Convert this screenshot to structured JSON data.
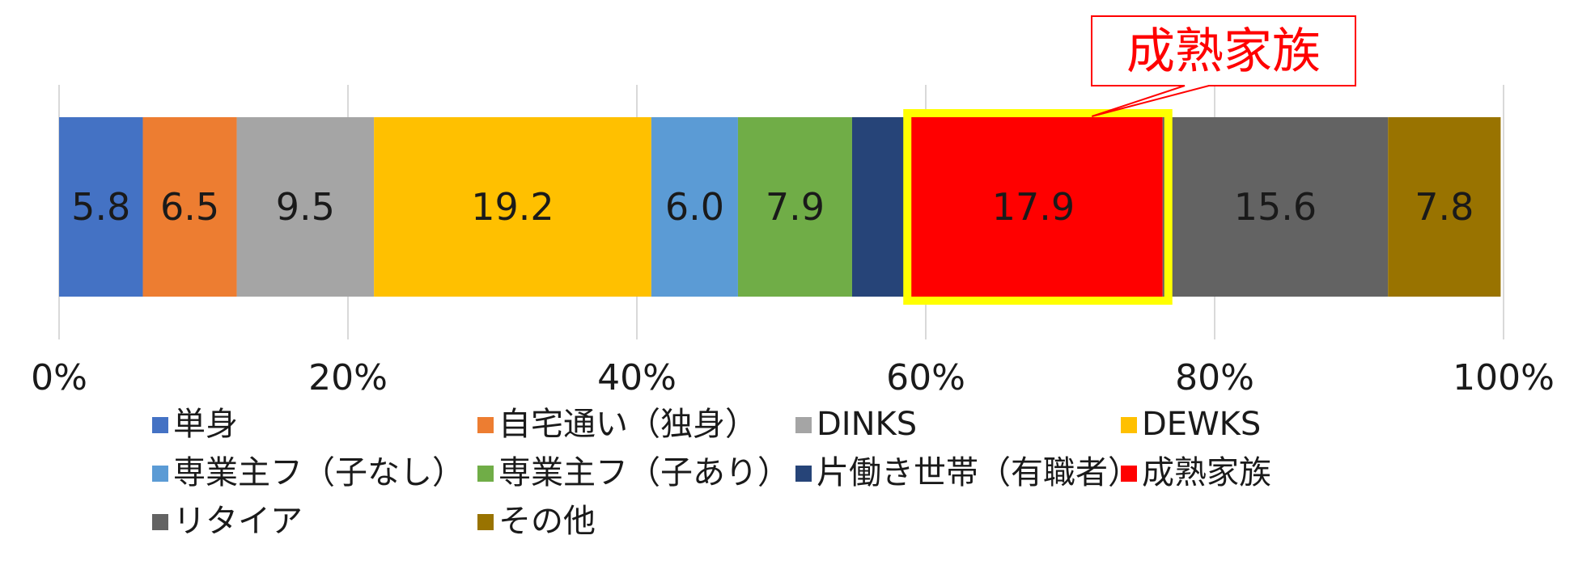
{
  "chart_data": {
    "type": "bar",
    "orientation": "horizontal",
    "stacked": true,
    "xlim": [
      0,
      100
    ],
    "x_ticks": [
      "0%",
      "20%",
      "40%",
      "60%",
      "80%",
      "100%"
    ],
    "grid": true,
    "legend_position": "bottom",
    "series": [
      {
        "name": "単身",
        "value": 5.8,
        "label": "5.8",
        "color": "#4472c4"
      },
      {
        "name": "自宅通い（独身）",
        "value": 6.5,
        "label": "6.5",
        "color": "#ed7d31"
      },
      {
        "name": "DINKS",
        "value": 9.5,
        "label": "9.5",
        "color": "#a5a5a5"
      },
      {
        "name": "DEWKS",
        "value": 19.2,
        "label": "19.2",
        "color": "#ffc000"
      },
      {
        "name": "専業主フ（子なし）",
        "value": 6.0,
        "label": "6.0",
        "color": "#5b9bd5"
      },
      {
        "name": "専業主フ（子あり）",
        "value": 7.9,
        "label": "7.9",
        "color": "#70ad47"
      },
      {
        "name": "片働き世帯（有職者）",
        "value": 3.6,
        "label": "",
        "color": "#264478"
      },
      {
        "name": "成熟家族",
        "value": 17.9,
        "label": "17.9",
        "color": "#ff0000"
      },
      {
        "name": "リタイア",
        "value": 15.6,
        "label": "15.6",
        "color": "#636363"
      },
      {
        "name": "その他",
        "value": 7.8,
        "label": "7.8",
        "color": "#997300"
      }
    ],
    "highlight": {
      "series": "成熟家族",
      "color": "#ffff00"
    },
    "callout": {
      "text": "成熟家族",
      "color": "#ff0000"
    }
  }
}
